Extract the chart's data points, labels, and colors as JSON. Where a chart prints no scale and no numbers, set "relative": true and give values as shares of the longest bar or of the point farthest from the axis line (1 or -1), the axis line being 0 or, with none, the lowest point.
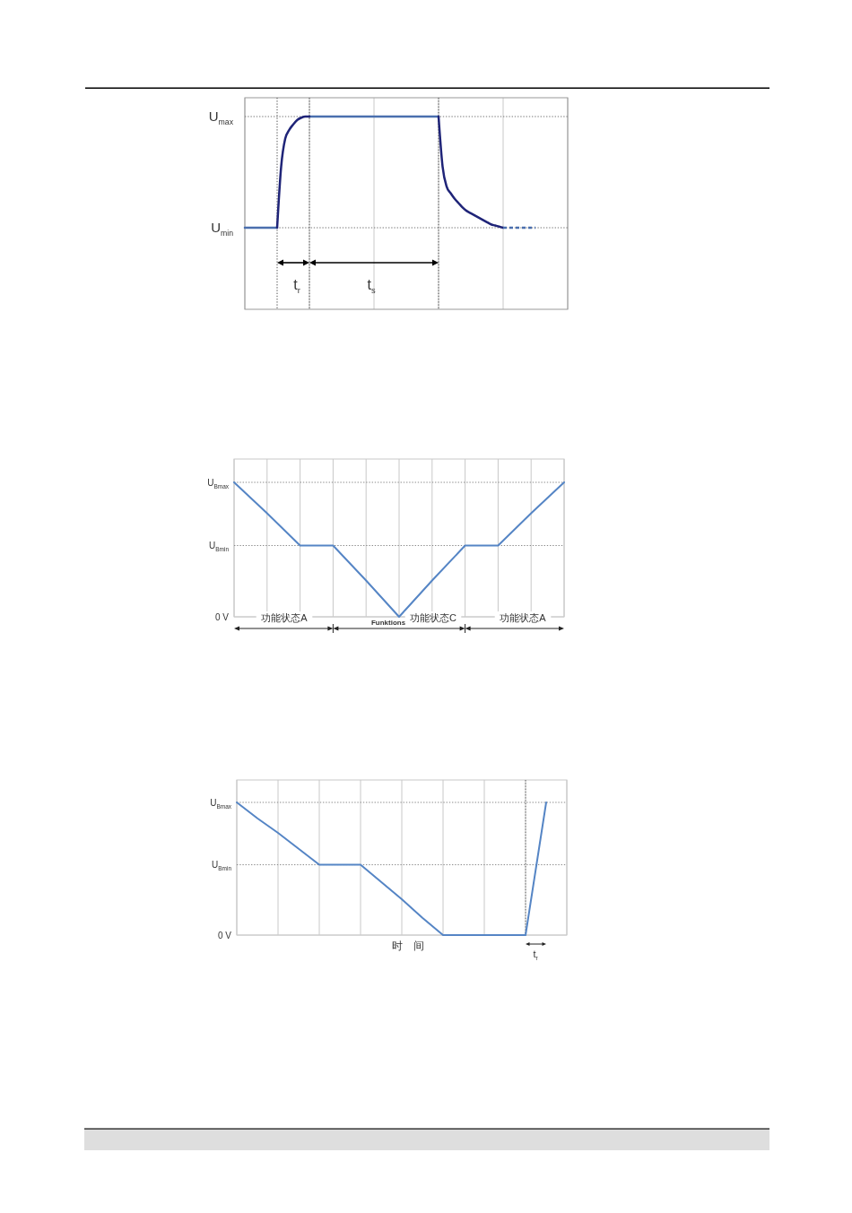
{
  "chart_data": [
    {
      "type": "line",
      "relative": true,
      "grid": "x",
      "categories": [
        null,
        null,
        null,
        null,
        null,
        null,
        null,
        null,
        null,
        null,
        null,
        null,
        null,
        null,
        null,
        null,
        null,
        null,
        null,
        null,
        null,
        null,
        null,
        null,
        null,
        null,
        null,
        null,
        null,
        null,
        null,
        null,
        null,
        null,
        null,
        null,
        null,
        null,
        null,
        null,
        null,
        null,
        null,
        null,
        null,
        null,
        null,
        null,
        null,
        null,
        null,
        null,
        null,
        null,
        null,
        null,
        null,
        null,
        null,
        null,
        null,
        null,
        null,
        null,
        null,
        null,
        null,
        null,
        null,
        null,
        null,
        null,
        null,
        null,
        null,
        null,
        null,
        null,
        null,
        null,
        null
      ],
      "series": [
        {
          "color": "#4a6fae",
          "values": [
            0,
            0,
            0,
            0,
            0,
            0,
            0,
            0,
            0,
            null,
            null,
            null,
            null,
            null,
            null,
            null,
            1,
            1,
            1,
            1,
            1,
            1,
            1,
            1,
            1,
            1,
            1,
            1,
            1,
            1,
            1,
            1,
            1,
            1,
            1,
            1,
            1,
            1,
            1,
            1,
            1,
            1,
            1,
            1,
            1,
            1,
            1,
            1,
            1,
            null,
            null,
            null,
            null,
            null,
            null,
            null,
            null,
            null,
            null,
            null,
            null,
            null,
            null,
            null,
            null,
            null,
            null,
            null,
            null,
            null,
            null,
            null,
            null,
            null,
            null,
            null,
            null,
            null,
            null,
            null,
            null
          ]
        },
        {
          "color": "#1f2478",
          "values": [
            null,
            null,
            null,
            null,
            null,
            null,
            null,
            null,
            0,
            0.55,
            0.8,
            0.88,
            0.93,
            0.97,
            0.99,
            1,
            1,
            null,
            null,
            null,
            null,
            null,
            null,
            null,
            null,
            null,
            null,
            null,
            null,
            null,
            null,
            null,
            null,
            null,
            null,
            null,
            null,
            null,
            null,
            null,
            null,
            null,
            null,
            null,
            null,
            null,
            null,
            null,
            1,
            0.55,
            0.37,
            0.31,
            0.26,
            0.22,
            0.18,
            0.15,
            0.13,
            0.11,
            0.09,
            0.07,
            0.05,
            0.03,
            0.02,
            0.01,
            0,
            null,
            null,
            null,
            null,
            null,
            null,
            null,
            null,
            null,
            null,
            null,
            null,
            null,
            null,
            null,
            null
          ]
        },
        {
          "color": "#4a6fae",
          "line_style": "dashed",
          "values": [
            null,
            null,
            null,
            null,
            null,
            null,
            null,
            null,
            null,
            null,
            null,
            null,
            null,
            null,
            null,
            null,
            null,
            null,
            null,
            null,
            null,
            null,
            null,
            null,
            null,
            null,
            null,
            null,
            null,
            null,
            null,
            null,
            null,
            null,
            null,
            null,
            null,
            null,
            null,
            null,
            null,
            null,
            null,
            null,
            null,
            null,
            null,
            null,
            null,
            null,
            null,
            null,
            null,
            null,
            null,
            null,
            null,
            null,
            null,
            null,
            null,
            null,
            null,
            null,
            0,
            0,
            0,
            0,
            0,
            0,
            0,
            0,
            0,
            null,
            null,
            null,
            null,
            null,
            null,
            null,
            null
          ]
        }
      ],
      "ref_lines": [
        {
          "axis": "y",
          "value": 1,
          "label": "U$_{max}$",
          "line_style": "dotted",
          "color": "#777777"
        },
        {
          "axis": "y",
          "value": 0,
          "label": "U$_{min}$",
          "line_style": "dotted",
          "color": "#777777"
        }
      ],
      "annotations": [
        "t$_{r}$",
        "t$_{s}$"
      ]
    },
    {
      "type": "line",
      "relative": true,
      "grid": "x",
      "categories": [
        null,
        null,
        null,
        null,
        null,
        null,
        null,
        null,
        null,
        null,
        null
      ],
      "series": [
        {
          "color": "#5585c5",
          "values": [
            1,
            0.77,
            0.53,
            0.53,
            0.27,
            0,
            0.27,
            0.53,
            0.53,
            0.77,
            1
          ]
        }
      ],
      "ref_lines": [
        {
          "axis": "y",
          "value": 1,
          "label": "U$_{Bmax}$",
          "line_style": "dotted",
          "color": "#8a8a8a"
        },
        {
          "axis": "y",
          "value": 0.53,
          "label": "U$_{Bmin}$",
          "line_style": "dotted",
          "color": "#8a8a8a"
        },
        {
          "axis": "y",
          "value": 0,
          "label": "0 V",
          "line_style": "solid",
          "color": "#cccccc"
        }
      ],
      "annotations": [
        "功能状态A",
        "Funktions",
        "功能状态C",
        "功能状态A"
      ]
    },
    {
      "type": "line",
      "relative": true,
      "grid": "x",
      "xlabel": "时　间",
      "categories": [
        null,
        null,
        null,
        null,
        null,
        null,
        null,
        null,
        null,
        null,
        null,
        null,
        null,
        null,
        null,
        null,
        null
      ],
      "series": [
        {
          "color": "#5585c5",
          "values": [
            1,
            0.88,
            0.77,
            0.65,
            0.53,
            0.53,
            0.53,
            0.4,
            0.27,
            0.13,
            0,
            0,
            0,
            0,
            0,
            1,
            null
          ]
        }
      ],
      "ref_lines": [
        {
          "axis": "y",
          "value": 1,
          "label": "U$_{Bmax}$",
          "line_style": "dotted",
          "color": "#8a8a8a"
        },
        {
          "axis": "y",
          "value": 0.53,
          "label": "U$_{Bmin}$",
          "line_style": "dotted",
          "color": "#8a8a8a"
        },
        {
          "axis": "y",
          "value": 0,
          "label": "0 V",
          "line_style": "solid",
          "color": "#cccccc"
        }
      ],
      "annotations": [
        "t$_{r}$"
      ]
    }
  ]
}
